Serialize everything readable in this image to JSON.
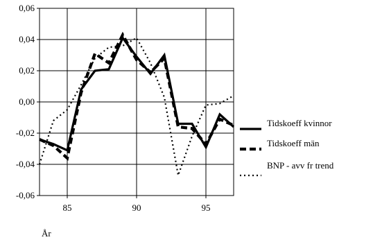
{
  "chart_data": {
    "type": "line",
    "title": "",
    "xlabel": "År",
    "ylabel": "",
    "xlim": [
      83,
      97
    ],
    "ylim": [
      -0.06,
      0.06
    ],
    "xticks": [
      85,
      90,
      95
    ],
    "xtick_labels": [
      "85",
      "90",
      "95"
    ],
    "yticks": [
      -0.06,
      -0.04,
      -0.02,
      0.0,
      0.02,
      0.04,
      0.06
    ],
    "ytick_labels": [
      "-0,06",
      "-0,04",
      "-0,02",
      "0,00",
      "0,02",
      "0,04",
      "0,06"
    ],
    "grid": true,
    "legend_position": "right",
    "series": [
      {
        "name": "Tidskoeff  kvinnor",
        "style": "solid",
        "color": "#000000",
        "x": [
          83,
          84,
          85,
          86,
          87,
          88,
          89,
          90,
          91,
          92,
          93,
          94,
          95,
          96,
          97
        ],
        "y": [
          -0.024,
          -0.027,
          -0.031,
          0.008,
          0.02,
          0.021,
          0.041,
          0.029,
          0.018,
          0.03,
          -0.014,
          -0.014,
          -0.029,
          -0.008,
          -0.016
        ]
      },
      {
        "name": "Tidskoeff  män",
        "style": "dashed",
        "color": "#000000",
        "x": [
          83,
          84,
          85,
          86,
          87,
          88,
          89,
          90,
          91,
          92,
          93,
          94,
          95,
          96,
          97
        ],
        "y": [
          -0.024,
          -0.028,
          -0.036,
          0.006,
          0.031,
          0.025,
          0.043,
          0.027,
          0.019,
          0.028,
          -0.016,
          -0.017,
          -0.027,
          -0.011,
          -0.015
        ]
      },
      {
        "name": "BNP - avv fr trend",
        "style": "dotted",
        "color": "#000000",
        "x": [
          83,
          84,
          85,
          86,
          87,
          88,
          89,
          90,
          91,
          92,
          93,
          94,
          95,
          96,
          97
        ],
        "y": [
          -0.04,
          -0.012,
          -0.005,
          0.011,
          0.028,
          0.035,
          0.036,
          0.041,
          0.025,
          0.003,
          -0.047,
          -0.022,
          -0.002,
          -0.001,
          0.004
        ]
      }
    ]
  }
}
